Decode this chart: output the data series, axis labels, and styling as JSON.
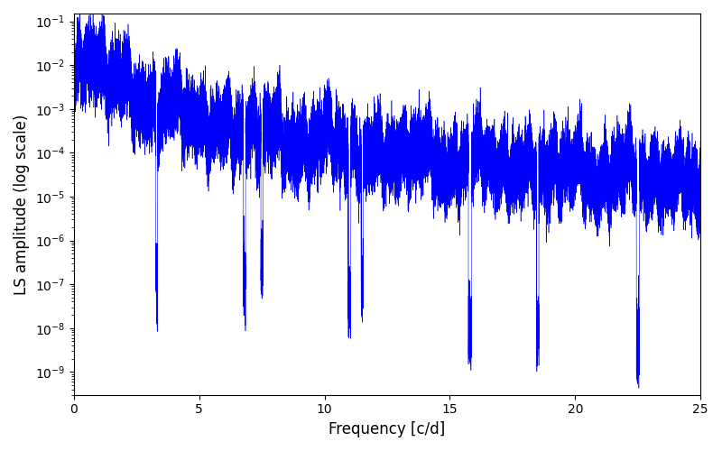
{
  "xlabel": "Frequency [c/d]",
  "ylabel": "LS amplitude (log scale)",
  "line_color": "blue",
  "xlim": [
    0,
    25
  ],
  "ylim": [
    3e-10,
    0.15
  ],
  "figsize": [
    8.0,
    5.0
  ],
  "dpi": 100,
  "n_points": 60000,
  "freq_max": 25.0,
  "seed": 7
}
